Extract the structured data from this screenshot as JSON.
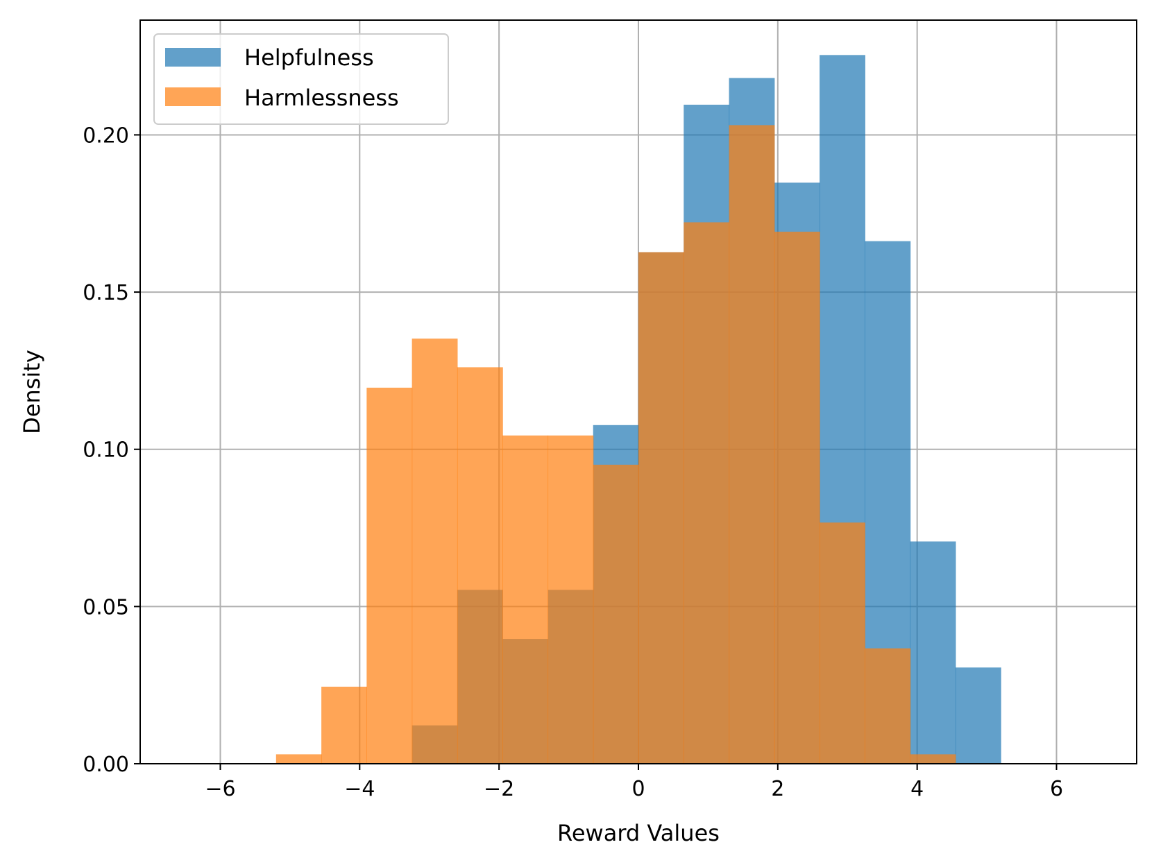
{
  "chart_data": {
    "type": "bar",
    "subtype": "histogram",
    "xlabel": "Reward Values",
    "ylabel": "Density",
    "xlim": [
      -7.15,
      7.15
    ],
    "ylim": [
      0,
      0.2365
    ],
    "xticks": [
      -6,
      -4,
      -2,
      0,
      2,
      4,
      6
    ],
    "xtick_labels": [
      "−6",
      "−4",
      "−2",
      "0",
      "2",
      "4",
      "6"
    ],
    "yticks": [
      0.0,
      0.05,
      0.1,
      0.15,
      0.2
    ],
    "ytick_labels": [
      "0.00",
      "0.05",
      "0.10",
      "0.15",
      "0.20"
    ],
    "grid": true,
    "legend_position": "top-left",
    "series": [
      {
        "name": "Helpfulness",
        "color": "#1f77b4",
        "opacity": 0.7,
        "bin_edges": [
          -3.25,
          -2.6,
          -1.95,
          -1.3,
          -0.65,
          0.0,
          0.65,
          1.3,
          1.95,
          2.6,
          3.25,
          3.9,
          4.55,
          5.2
        ],
        "values": [
          0.0122,
          0.0553,
          0.0397,
          0.0553,
          0.1077,
          0.1627,
          0.2096,
          0.2181,
          0.1848,
          0.2254,
          0.1662,
          0.0707,
          0.0306
        ]
      },
      {
        "name": "Harmlessness",
        "color": "#ff7f0e",
        "opacity": 0.7,
        "bin_edges": [
          -5.2,
          -4.55,
          -3.9,
          -3.25,
          -2.6,
          -1.95,
          -1.3,
          -0.65,
          0.0,
          0.65,
          1.3,
          1.95,
          2.6,
          3.25,
          3.9,
          4.55
        ],
        "values": [
          0.003,
          0.0245,
          0.1196,
          0.1352,
          0.1261,
          0.1044,
          0.1044,
          0.0951,
          0.1627,
          0.1722,
          0.2031,
          0.1692,
          0.0767,
          0.0367,
          0.003
        ]
      }
    ]
  }
}
